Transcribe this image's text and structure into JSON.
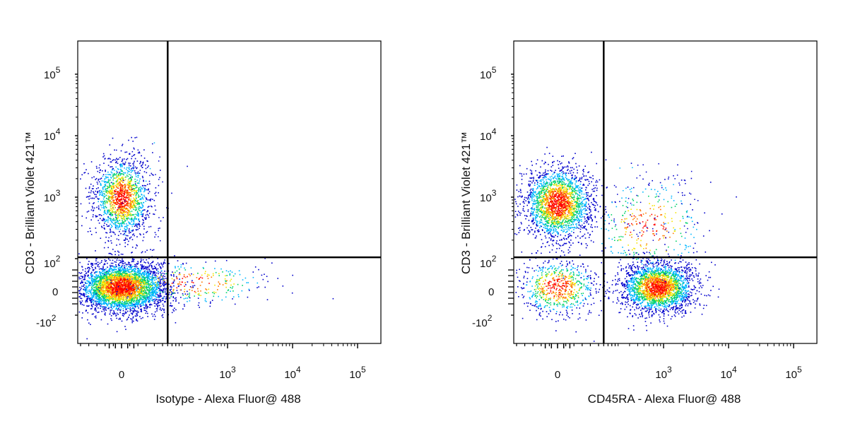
{
  "chart_data": [
    {
      "type": "scatter",
      "subtype": "flow-cytometry density dot plot (biexponential axes)",
      "xlabel": "Isotype - Alexa Fluor@ 488",
      "ylabel": "CD3 - Brilliant Violet 421™",
      "x_ticks": [
        "0",
        "10^3",
        "10^4",
        "10^5"
      ],
      "y_ticks": [
        "10^5",
        "10^4",
        "10^3",
        "10^2",
        "0",
        "-10^2"
      ],
      "quadrant_gate": {
        "x": 120,
        "y": 120
      },
      "populations": [
        {
          "name": "CD3+ (upper-left)",
          "x_center": 0,
          "y_center": 1000
        },
        {
          "name": "CD3- (lower-left)",
          "x_center": 0,
          "y_center": 0
        }
      ],
      "color_scale": [
        "#0000cc",
        "#00b7ff",
        "#00d26a",
        "#f5e400",
        "#ff7a00",
        "#ff0000"
      ]
    },
    {
      "type": "scatter",
      "subtype": "flow-cytometry density dot plot (biexponential axes)",
      "xlabel": "CD45RA - Alexa Fluor@ 488",
      "ylabel": "CD3 - Brilliant Violet 421™",
      "x_ticks": [
        "0",
        "10^3",
        "10^4",
        "10^5"
      ],
      "y_ticks": [
        "10^5",
        "10^4",
        "10^3",
        "10^2",
        "0",
        "-10^2"
      ],
      "quadrant_gate": {
        "x": 120,
        "y": 120
      },
      "populations": [
        {
          "name": "CD3+ CD45RA- (upper-left)",
          "x_center": 0,
          "y_center": 800
        },
        {
          "name": "CD3- CD45RA- (lower-left)",
          "x_center": 0,
          "y_center": 0
        },
        {
          "name": "CD3- CD45RA+ (lower-right)",
          "x_center": 800,
          "y_center": 0
        },
        {
          "name": "CD3+ CD45RA+ (upper-right, sparse)",
          "x_center": 900,
          "y_center": 500
        }
      ],
      "color_scale": [
        "#0000cc",
        "#00b7ff",
        "#00d26a",
        "#f5e400",
        "#ff7a00",
        "#ff0000"
      ]
    }
  ]
}
